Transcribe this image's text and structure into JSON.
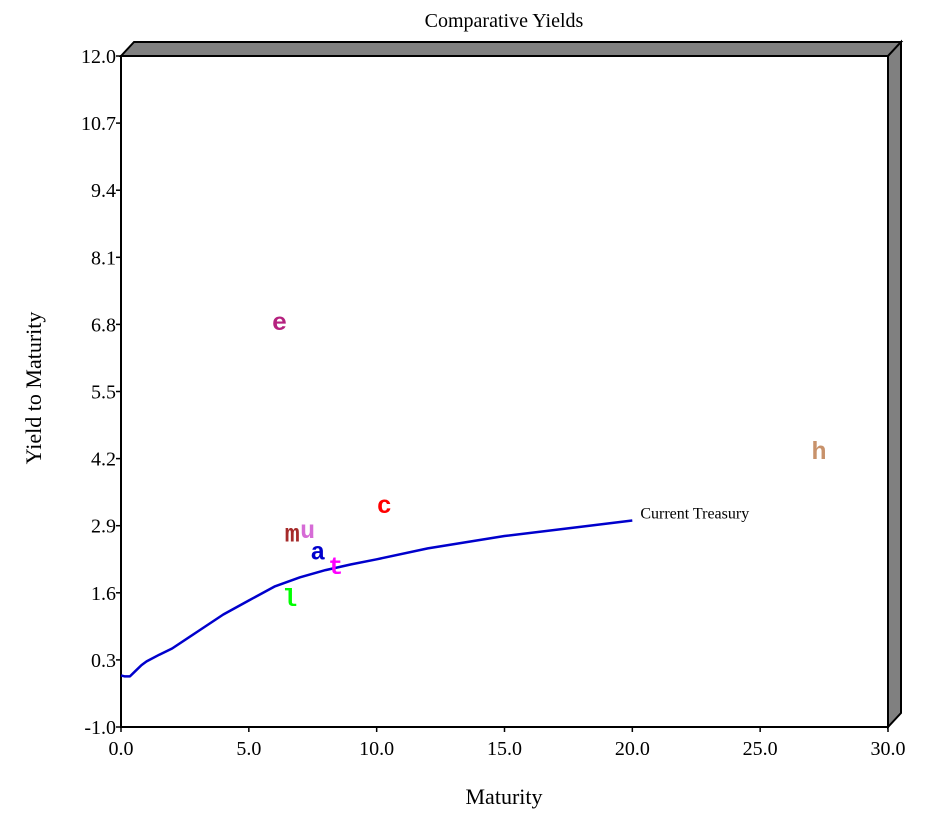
{
  "chart_data": {
    "type": "scatter",
    "title": "Comparative Yields",
    "xlabel": "Maturity",
    "ylabel": "Yield to Maturity",
    "xlim": [
      0,
      30
    ],
    "ylim": [
      -1.0,
      12.0
    ],
    "x_ticks": [
      "0.0",
      "5.0",
      "10.0",
      "15.0",
      "20.0",
      "25.0",
      "30.0"
    ],
    "y_ticks": [
      "-1.0",
      "0.3",
      "1.6",
      "2.9",
      "4.2",
      "5.5",
      "6.8",
      "8.1",
      "9.4",
      "10.7",
      "12.0"
    ],
    "series": [
      {
        "name": "Current Treasury",
        "type": "line",
        "color": "#0000cc",
        "x": [
          0,
          0.15,
          0.35,
          0.55,
          0.8,
          1.0,
          1.5,
          2.0,
          3.0,
          4.0,
          5.0,
          6.0,
          7.0,
          8.0,
          9.0,
          10.0,
          12.0,
          15.0,
          18.0,
          20.0
        ],
        "y": [
          0.0,
          -0.02,
          -0.02,
          0.08,
          0.2,
          0.27,
          0.4,
          0.52,
          0.85,
          1.18,
          1.45,
          1.72,
          1.9,
          2.04,
          2.15,
          2.25,
          2.46,
          2.7,
          2.88,
          3.0
        ]
      }
    ],
    "markers": [
      {
        "label": "e",
        "x": 6.2,
        "y": 6.85,
        "color": "#b5217f"
      },
      {
        "label": "h",
        "x": 27.3,
        "y": 4.35,
        "color": "#c8926b"
      },
      {
        "label": "c",
        "x": 10.3,
        "y": 3.3,
        "color": "#ff0000"
      },
      {
        "label": "m",
        "x": 6.7,
        "y": 2.75,
        "color": "#a52a2a"
      },
      {
        "label": "u",
        "x": 7.3,
        "y": 2.82,
        "color": "#d66bd6"
      },
      {
        "label": "a",
        "x": 7.7,
        "y": 2.4,
        "color": "#0000cc"
      },
      {
        "label": "t",
        "x": 8.4,
        "y": 2.12,
        "color": "#ff00ff"
      },
      {
        "label": "l",
        "x": 6.6,
        "y": 1.5,
        "color": "#00ff00"
      }
    ],
    "grid": false,
    "frame_color": "#808080"
  }
}
